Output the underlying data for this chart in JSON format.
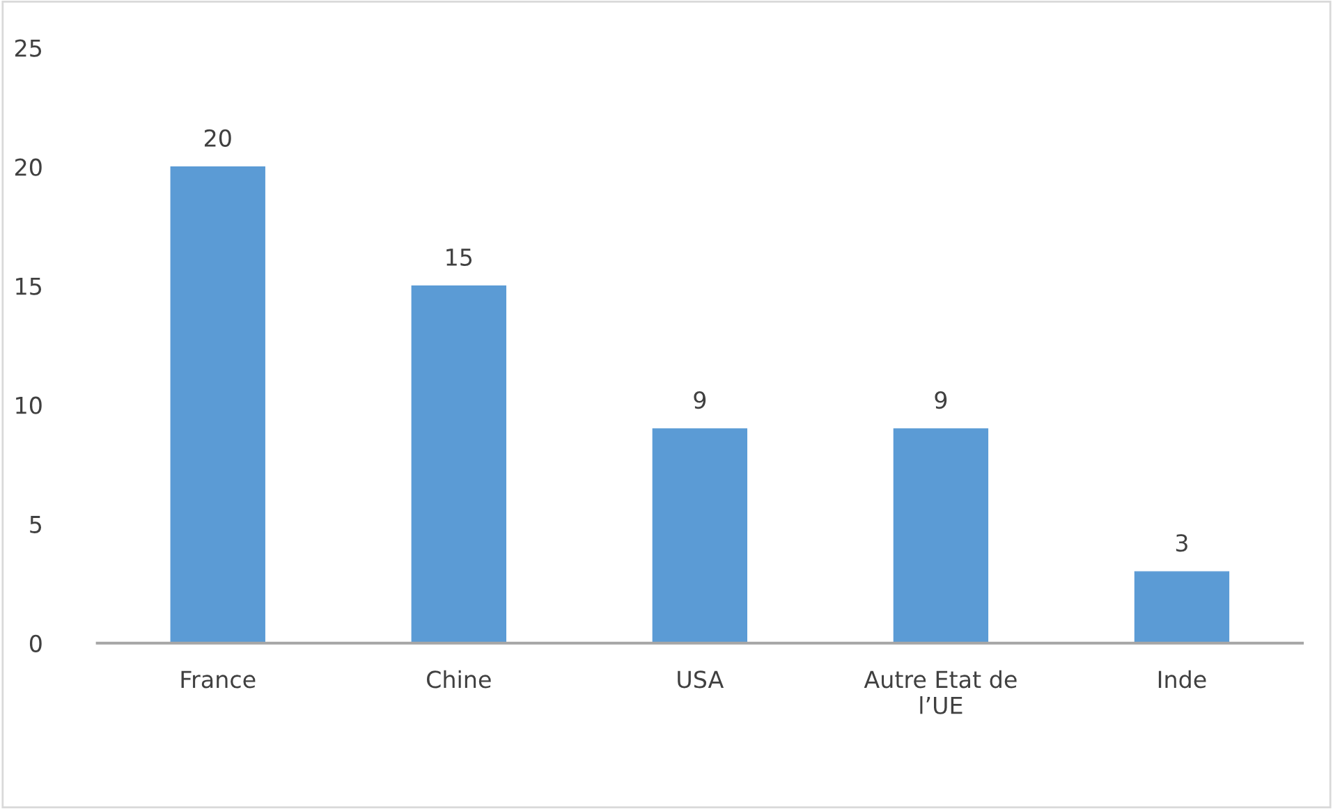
{
  "chart_data": {
    "type": "bar",
    "categories": [
      "France",
      "Chine",
      "USA",
      "Autre Etat de l’UE",
      "Inde"
    ],
    "values": [
      20,
      15,
      9,
      9,
      3
    ],
    "color": "#5b9bd5",
    "ylim": [
      0,
      25
    ],
    "yticks": [
      0,
      5,
      10,
      15,
      20,
      25
    ],
    "grid": false,
    "data_labels": true
  }
}
